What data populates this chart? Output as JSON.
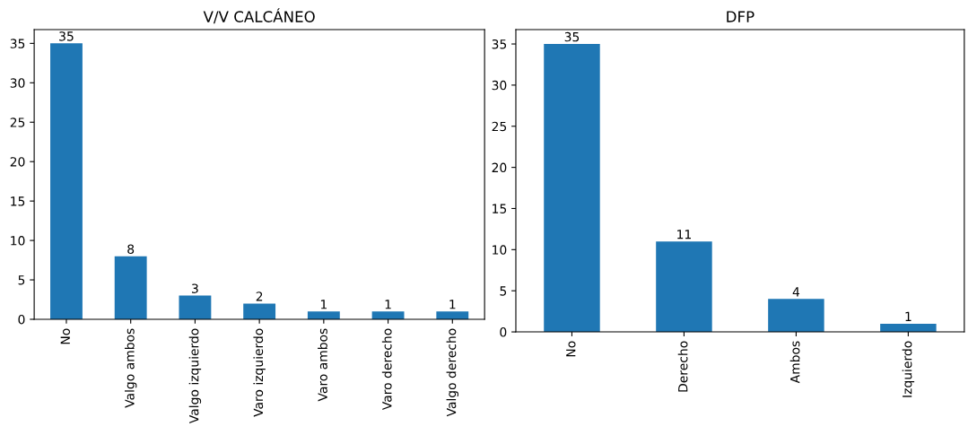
{
  "chart_data": [
    {
      "type": "bar",
      "title": "V/V CALCÁNEO",
      "categories": [
        "No",
        "Valgo ambos",
        "Valgo izquierdo",
        "Varo izquierdo",
        "Varo ambos",
        "Varo derecho",
        "Valgo derecho"
      ],
      "values": [
        35,
        8,
        3,
        2,
        1,
        1,
        1
      ],
      "color": "#1f77b4",
      "ylim": [
        0,
        36.75
      ],
      "yticks": [
        0,
        5,
        10,
        15,
        20,
        25,
        30,
        35
      ],
      "data_labels": true,
      "grid": false
    },
    {
      "type": "bar",
      "title": "DFP",
      "categories": [
        "No",
        "Derecho",
        "Ambos",
        "Izquierdo"
      ],
      "values": [
        35,
        11,
        4,
        1
      ],
      "color": "#1f77b4",
      "ylim": [
        0,
        36.75
      ],
      "yticks": [
        0,
        5,
        10,
        15,
        20,
        25,
        30,
        35
      ],
      "data_labels": true,
      "grid": false
    }
  ]
}
